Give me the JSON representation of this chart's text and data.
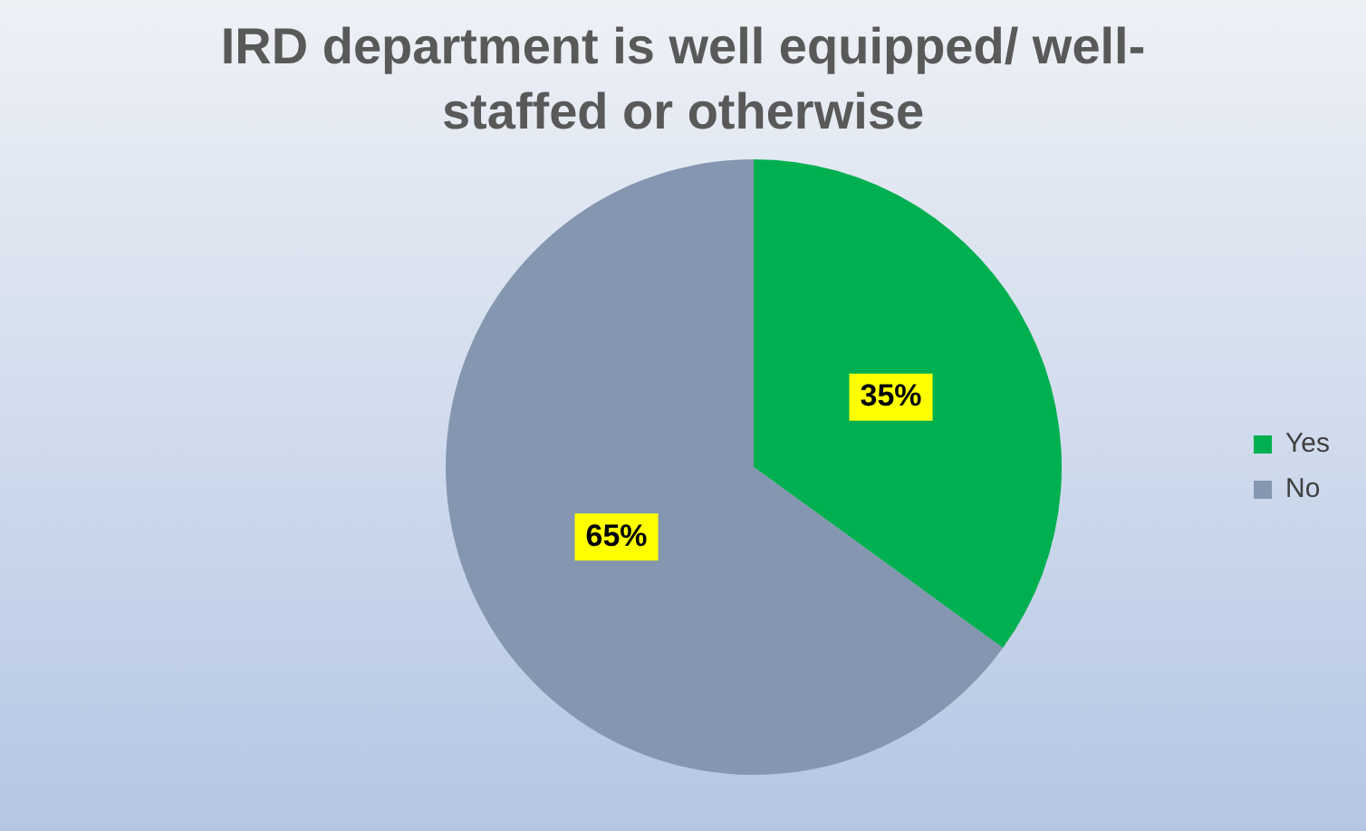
{
  "chart_data": {
    "type": "pie",
    "title": "IRD department is well equipped/ well-staffed or otherwise",
    "categories": [
      "Yes",
      "No"
    ],
    "values": [
      35,
      65
    ],
    "colors": [
      "#00b050",
      "#8496b0"
    ],
    "value_labels": [
      "35%",
      "65%"
    ],
    "legend": "right"
  }
}
